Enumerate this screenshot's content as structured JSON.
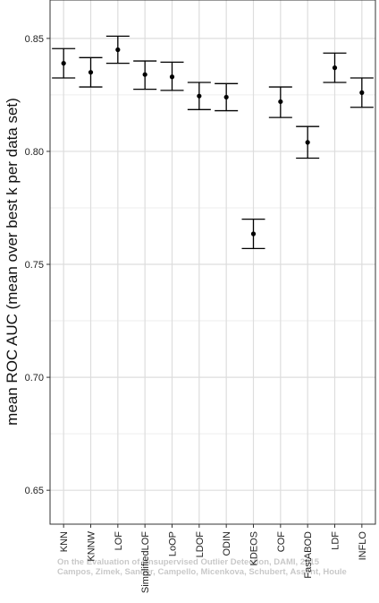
{
  "chart_data": {
    "type": "scatter",
    "subtype": "dot-with-error-bars",
    "title": "",
    "xlabel": "",
    "ylabel": "mean ROC AUC (mean over best k per data set)",
    "ylim": [
      0.635,
      0.867
    ],
    "yticks": [
      0.65,
      0.7,
      0.75,
      0.8,
      0.85
    ],
    "ytick_labels": [
      "0.65",
      "0.70",
      "0.75",
      "0.80",
      "0.85"
    ],
    "grid": true,
    "categories": [
      "KNN",
      "KNNW",
      "LOF",
      "SimplifiedLOF",
      "LoOP",
      "LDOF",
      "ODIN",
      "KDEOS",
      "COF",
      "FastABOD",
      "LDF",
      "INFLO"
    ],
    "series": [
      {
        "values": [
          0.839,
          0.835,
          0.845,
          0.834,
          0.833,
          0.8245,
          0.824,
          0.7635,
          0.822,
          0.804,
          0.837,
          0.826
        ],
        "lower": [
          0.8325,
          0.8285,
          0.839,
          0.8275,
          0.827,
          0.8185,
          0.818,
          0.757,
          0.815,
          0.797,
          0.8305,
          0.8195
        ],
        "upper": [
          0.8455,
          0.8415,
          0.851,
          0.84,
          0.8395,
          0.8305,
          0.83,
          0.77,
          0.8285,
          0.811,
          0.8435,
          0.8325
        ]
      }
    ],
    "colors": {
      "background": "#ffffff",
      "grid": "#dddddd",
      "marks": "#000000",
      "axis": "#333333"
    }
  },
  "watermark": {
    "line1": "On the Evaluation of Unsupervised Outlier Detection, DAMI, 2015",
    "line2": "Campos, Zimek, Sander, Campello, Micenkova, Schubert, Assent, Houle"
  }
}
